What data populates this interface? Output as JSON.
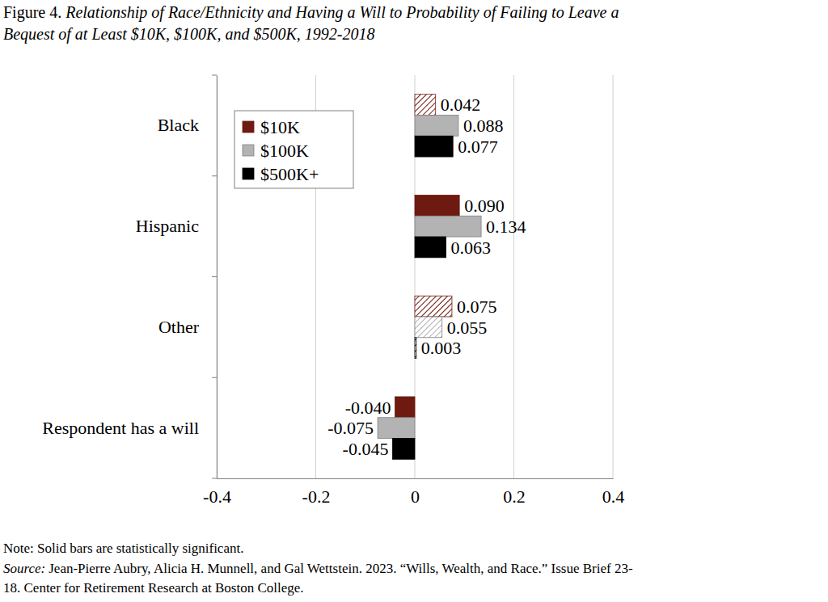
{
  "chart_data": {
    "type": "bar",
    "orientation": "horizontal",
    "figure_label": "Figure 4.",
    "title": [
      "Relationship of Race/Ethnicity and Having a Will to Probability of Failing to Leave a",
      "Bequest of at Least $10K, $100K, and $500K, 1992-2018"
    ],
    "categories": [
      "Black",
      "Hispanic",
      "Other",
      "Respondent has a will"
    ],
    "series": [
      {
        "name": "$10K",
        "color": "#6e1a10",
        "values": [
          0.042,
          0.09,
          0.075,
          -0.04
        ],
        "value_labels": [
          "0.042",
          "0.090",
          "0.075",
          "-0.040"
        ],
        "significant": [
          false,
          true,
          false,
          true
        ]
      },
      {
        "name": "$100K",
        "color": "#b3b3b3",
        "values": [
          0.088,
          0.134,
          0.055,
          -0.075
        ],
        "value_labels": [
          "0.088",
          "0.134",
          "0.055",
          "-0.075"
        ],
        "significant": [
          true,
          true,
          false,
          true
        ]
      },
      {
        "name": "$500K+",
        "color": "#000000",
        "values": [
          0.077,
          0.063,
          0.003,
          -0.045
        ],
        "value_labels": [
          "0.077",
          "0.063",
          "0.003",
          "-0.045"
        ],
        "significant": [
          true,
          true,
          false,
          true
        ]
      }
    ],
    "xlim": [
      -0.4,
      0.4
    ],
    "xticks": [
      -0.4,
      -0.2,
      0,
      0.2,
      0.4
    ],
    "grid": true,
    "legend": "upper left",
    "data_labels": true,
    "note": "Note: Solid bars are statistically significant.",
    "source_label": "Source:",
    "source": [
      "Jean-Pierre Aubry, Alicia H. Munnell, and Gal Wettstein. 2023. “Wills, Wealth, and Race.” Issue Brief 23-",
      "18. Center for Retirement Research at Boston College."
    ]
  }
}
